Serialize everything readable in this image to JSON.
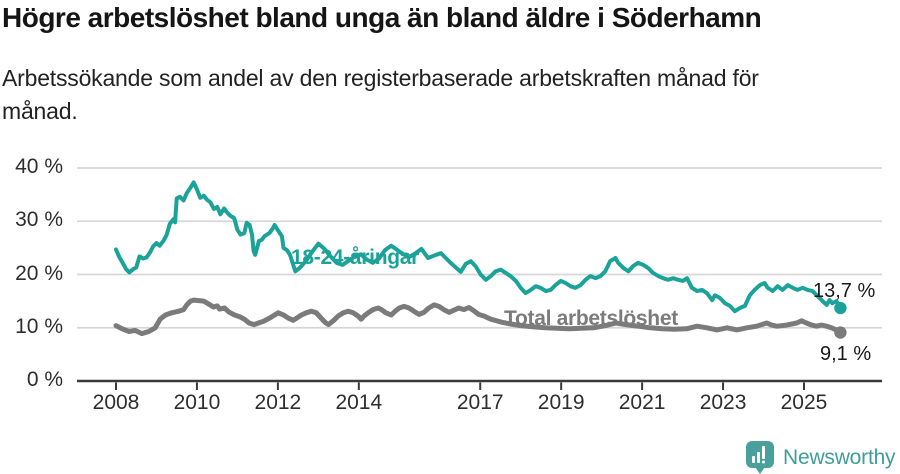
{
  "header": {
    "title": "Högre arbetslöshet bland unga än bland äldre i Söderhamn",
    "subtitle_line1": "Arbetssökande som andel av den registerbaserade arbetskraften månad för",
    "subtitle_line2": "månad."
  },
  "chart_data": {
    "type": "line",
    "title": "Högre arbetslöshet bland unga än bland äldre i Söderhamn",
    "subtitle": "Arbetssökande som andel av den registerbaserade arbetskraften månad för månad.",
    "x_ticks": [
      2008,
      2010,
      2012,
      2014,
      2017,
      2019,
      2021,
      2023,
      2025
    ],
    "y_ticks": [
      0,
      10,
      20,
      30,
      40
    ],
    "y_tick_suffix": " %",
    "xlim": [
      2008,
      2026
    ],
    "ylim": [
      0,
      40
    ],
    "grid": "horizontal",
    "legend": "inline-labels",
    "grid_color": "#d7d7d7",
    "axis_color": "#3a3a3a",
    "series": [
      {
        "name": "18-24-åringar",
        "color": "#1ba39a",
        "end_label": "13,7 %",
        "end_value": 13.7,
        "points": [
          [
            2008.0,
            24.7
          ],
          [
            2008.08,
            23.3
          ],
          [
            2008.17,
            22.1
          ],
          [
            2008.25,
            21.0
          ],
          [
            2008.33,
            20.4
          ],
          [
            2008.42,
            21.0
          ],
          [
            2008.5,
            21.3
          ],
          [
            2008.58,
            23.4
          ],
          [
            2008.67,
            23.0
          ],
          [
            2008.75,
            23.2
          ],
          [
            2008.83,
            24.0
          ],
          [
            2008.92,
            25.3
          ],
          [
            2009.0,
            25.9
          ],
          [
            2009.08,
            25.4
          ],
          [
            2009.17,
            26.3
          ],
          [
            2009.25,
            27.4
          ],
          [
            2009.33,
            29.5
          ],
          [
            2009.42,
            30.4
          ],
          [
            2009.46,
            29.8
          ],
          [
            2009.5,
            34.3
          ],
          [
            2009.58,
            34.6
          ],
          [
            2009.67,
            33.9
          ],
          [
            2009.75,
            35.3
          ],
          [
            2009.83,
            36.2
          ],
          [
            2009.92,
            37.3
          ],
          [
            2010.0,
            36.0
          ],
          [
            2010.08,
            34.4
          ],
          [
            2010.17,
            34.8
          ],
          [
            2010.25,
            34.0
          ],
          [
            2010.33,
            33.6
          ],
          [
            2010.42,
            32.3
          ],
          [
            2010.5,
            32.7
          ],
          [
            2010.58,
            31.3
          ],
          [
            2010.67,
            32.4
          ],
          [
            2010.75,
            31.6
          ],
          [
            2010.83,
            31.0
          ],
          [
            2010.92,
            30.6
          ],
          [
            2011.0,
            28.4
          ],
          [
            2011.08,
            27.5
          ],
          [
            2011.17,
            27.8
          ],
          [
            2011.23,
            29.7
          ],
          [
            2011.3,
            29.3
          ],
          [
            2011.36,
            27.5
          ],
          [
            2011.4,
            24.4
          ],
          [
            2011.44,
            23.7
          ],
          [
            2011.53,
            26.3
          ],
          [
            2011.6,
            26.5
          ],
          [
            2011.67,
            27.2
          ],
          [
            2011.79,
            27.8
          ],
          [
            2011.88,
            28.7
          ],
          [
            2011.92,
            29.3
          ],
          [
            2012.0,
            28.3
          ],
          [
            2012.1,
            27.2
          ],
          [
            2012.14,
            25.0
          ],
          [
            2012.22,
            24.6
          ],
          [
            2012.3,
            23.7
          ],
          [
            2012.43,
            20.6
          ],
          [
            2012.55,
            21.3
          ],
          [
            2012.7,
            22.6
          ],
          [
            2012.85,
            24.3
          ],
          [
            2013.0,
            25.8
          ],
          [
            2013.15,
            24.8
          ],
          [
            2013.3,
            23.4
          ],
          [
            2013.45,
            22.2
          ],
          [
            2013.6,
            21.8
          ],
          [
            2013.75,
            22.6
          ],
          [
            2013.9,
            23.4
          ],
          [
            2014.05,
            23.8
          ],
          [
            2014.2,
            22.8
          ],
          [
            2014.35,
            22.2
          ],
          [
            2014.5,
            23.0
          ],
          [
            2014.65,
            24.6
          ],
          [
            2014.8,
            25.4
          ],
          [
            2014.95,
            24.6
          ],
          [
            2015.1,
            23.8
          ],
          [
            2015.25,
            23.3
          ],
          [
            2015.4,
            24.0
          ],
          [
            2015.55,
            24.8
          ],
          [
            2015.71,
            23.1
          ],
          [
            2015.91,
            23.7
          ],
          [
            2016.03,
            24.0
          ],
          [
            2016.15,
            23.1
          ],
          [
            2016.28,
            22.1
          ],
          [
            2016.4,
            21.3
          ],
          [
            2016.52,
            20.5
          ],
          [
            2016.64,
            22.0
          ],
          [
            2016.77,
            22.5
          ],
          [
            2016.89,
            21.5
          ],
          [
            2017.01,
            20.0
          ],
          [
            2017.14,
            19.0
          ],
          [
            2017.26,
            19.7
          ],
          [
            2017.38,
            20.6
          ],
          [
            2017.51,
            20.9
          ],
          [
            2017.63,
            20.3
          ],
          [
            2017.75,
            19.7
          ],
          [
            2017.88,
            18.8
          ],
          [
            2018.0,
            17.5
          ],
          [
            2018.12,
            16.5
          ],
          [
            2018.25,
            17.1
          ],
          [
            2018.37,
            17.8
          ],
          [
            2018.49,
            17.5
          ],
          [
            2018.62,
            16.9
          ],
          [
            2018.74,
            17.1
          ],
          [
            2018.86,
            18.0
          ],
          [
            2018.99,
            18.8
          ],
          [
            2019.11,
            18.4
          ],
          [
            2019.23,
            17.8
          ],
          [
            2019.35,
            17.5
          ],
          [
            2019.48,
            18.0
          ],
          [
            2019.6,
            19.0
          ],
          [
            2019.72,
            19.7
          ],
          [
            2019.85,
            19.3
          ],
          [
            2019.97,
            19.7
          ],
          [
            2020.09,
            20.6
          ],
          [
            2020.21,
            22.5
          ],
          [
            2020.34,
            23.1
          ],
          [
            2020.41,
            22.2
          ],
          [
            2020.54,
            21.2
          ],
          [
            2020.66,
            20.6
          ],
          [
            2020.78,
            21.6
          ],
          [
            2020.9,
            22.2
          ],
          [
            2021.03,
            21.8
          ],
          [
            2021.15,
            21.2
          ],
          [
            2021.27,
            20.3
          ],
          [
            2021.4,
            19.7
          ],
          [
            2021.52,
            19.3
          ],
          [
            2021.64,
            19.0
          ],
          [
            2021.77,
            19.3
          ],
          [
            2021.89,
            19.0
          ],
          [
            2022.01,
            18.8
          ],
          [
            2022.11,
            19.3
          ],
          [
            2022.23,
            17.5
          ],
          [
            2022.36,
            16.9
          ],
          [
            2022.48,
            17.1
          ],
          [
            2022.6,
            16.5
          ],
          [
            2022.73,
            15.2
          ],
          [
            2022.8,
            16.1
          ],
          [
            2022.92,
            15.6
          ],
          [
            2023.05,
            14.6
          ],
          [
            2023.17,
            14.1
          ],
          [
            2023.29,
            13.1
          ],
          [
            2023.42,
            13.7
          ],
          [
            2023.54,
            14.1
          ],
          [
            2023.66,
            16.1
          ],
          [
            2023.78,
            17.1
          ],
          [
            2023.91,
            18.0
          ],
          [
            2024.03,
            18.4
          ],
          [
            2024.1,
            17.5
          ],
          [
            2024.23,
            16.9
          ],
          [
            2024.35,
            17.8
          ],
          [
            2024.47,
            17.1
          ],
          [
            2024.6,
            18.0
          ],
          [
            2024.72,
            17.5
          ],
          [
            2024.84,
            17.1
          ],
          [
            2024.97,
            17.5
          ],
          [
            2025.09,
            17.1
          ],
          [
            2025.21,
            16.9
          ],
          [
            2025.33,
            16.0
          ],
          [
            2025.46,
            15.0
          ],
          [
            2025.56,
            14.3
          ],
          [
            2025.63,
            15.2
          ],
          [
            2025.7,
            14.6
          ],
          [
            2025.8,
            15.0
          ],
          [
            2025.9,
            13.7
          ]
        ]
      },
      {
        "name": "Total arbetslöshet",
        "color": "#7b7b7b",
        "end_label": "9,1 %",
        "end_value": 9.1,
        "points": [
          [
            2008.0,
            10.4
          ],
          [
            2008.15,
            9.8
          ],
          [
            2008.32,
            9.3
          ],
          [
            2008.47,
            9.5
          ],
          [
            2008.64,
            8.9
          ],
          [
            2008.81,
            9.3
          ],
          [
            2008.97,
            10.0
          ],
          [
            2009.09,
            11.6
          ],
          [
            2009.22,
            12.4
          ],
          [
            2009.38,
            12.8
          ],
          [
            2009.55,
            13.1
          ],
          [
            2009.67,
            13.4
          ],
          [
            2009.75,
            14.3
          ],
          [
            2009.84,
            15.0
          ],
          [
            2009.92,
            15.2
          ],
          [
            2010.05,
            15.1
          ],
          [
            2010.17,
            15.0
          ],
          [
            2010.3,
            14.4
          ],
          [
            2010.41,
            13.9
          ],
          [
            2010.5,
            14.1
          ],
          [
            2010.56,
            13.5
          ],
          [
            2010.68,
            13.7
          ],
          [
            2010.8,
            12.9
          ],
          [
            2010.93,
            12.4
          ],
          [
            2011.05,
            12.1
          ],
          [
            2011.17,
            11.6
          ],
          [
            2011.29,
            10.9
          ],
          [
            2011.41,
            10.6
          ],
          [
            2011.52,
            10.9
          ],
          [
            2011.64,
            11.2
          ],
          [
            2011.79,
            11.8
          ],
          [
            2011.92,
            12.4
          ],
          [
            2012.01,
            12.8
          ],
          [
            2012.14,
            12.4
          ],
          [
            2012.26,
            11.8
          ],
          [
            2012.38,
            11.4
          ],
          [
            2012.46,
            11.8
          ],
          [
            2012.58,
            12.4
          ],
          [
            2012.7,
            12.8
          ],
          [
            2012.83,
            13.1
          ],
          [
            2012.95,
            12.8
          ],
          [
            2013.07,
            11.8
          ],
          [
            2013.17,
            11.0
          ],
          [
            2013.25,
            10.6
          ],
          [
            2013.37,
            11.3
          ],
          [
            2013.49,
            12.2
          ],
          [
            2013.62,
            12.8
          ],
          [
            2013.74,
            13.1
          ],
          [
            2013.86,
            12.8
          ],
          [
            2013.98,
            12.2
          ],
          [
            2014.06,
            11.6
          ],
          [
            2014.13,
            12.2
          ],
          [
            2014.23,
            12.8
          ],
          [
            2014.35,
            13.4
          ],
          [
            2014.48,
            13.7
          ],
          [
            2014.56,
            13.4
          ],
          [
            2014.67,
            12.8
          ],
          [
            2014.8,
            12.4
          ],
          [
            2014.9,
            13.1
          ],
          [
            2015.0,
            13.7
          ],
          [
            2015.12,
            14.0
          ],
          [
            2015.24,
            13.7
          ],
          [
            2015.36,
            13.1
          ],
          [
            2015.49,
            12.5
          ],
          [
            2015.61,
            12.9
          ],
          [
            2015.73,
            13.7
          ],
          [
            2015.86,
            14.3
          ],
          [
            2015.98,
            14.0
          ],
          [
            2016.1,
            13.4
          ],
          [
            2016.23,
            12.9
          ],
          [
            2016.35,
            13.3
          ],
          [
            2016.47,
            13.7
          ],
          [
            2016.6,
            13.4
          ],
          [
            2016.72,
            13.8
          ],
          [
            2016.84,
            13.2
          ],
          [
            2016.96,
            12.5
          ],
          [
            2017.09,
            12.2
          ],
          [
            2017.26,
            11.6
          ],
          [
            2017.5,
            11.1
          ],
          [
            2017.75,
            10.7
          ],
          [
            2018.0,
            10.4
          ],
          [
            2018.3,
            10.2
          ],
          [
            2018.6,
            10.0
          ],
          [
            2018.9,
            9.9
          ],
          [
            2019.2,
            9.8
          ],
          [
            2019.5,
            9.9
          ],
          [
            2019.8,
            10.0
          ],
          [
            2020.1,
            10.4
          ],
          [
            2020.35,
            10.9
          ],
          [
            2020.6,
            10.6
          ],
          [
            2020.9,
            10.3
          ],
          [
            2021.2,
            10.0
          ],
          [
            2021.5,
            9.8
          ],
          [
            2021.8,
            9.7
          ],
          [
            2022.1,
            9.8
          ],
          [
            2022.36,
            10.3
          ],
          [
            2022.6,
            10.0
          ],
          [
            2022.85,
            9.6
          ],
          [
            2023.1,
            10.0
          ],
          [
            2023.34,
            9.6
          ],
          [
            2023.59,
            10.0
          ],
          [
            2023.83,
            10.3
          ],
          [
            2024.08,
            10.9
          ],
          [
            2024.2,
            10.5
          ],
          [
            2024.33,
            10.3
          ],
          [
            2024.57,
            10.5
          ],
          [
            2024.82,
            10.9
          ],
          [
            2024.94,
            11.3
          ],
          [
            2025.06,
            10.9
          ],
          [
            2025.19,
            10.5
          ],
          [
            2025.31,
            10.3
          ],
          [
            2025.43,
            10.5
          ],
          [
            2025.56,
            10.3
          ],
          [
            2025.68,
            10.0
          ],
          [
            2025.8,
            9.6
          ],
          [
            2025.9,
            9.1
          ]
        ]
      }
    ]
  },
  "footer": {
    "brand": "Newsworthy",
    "brand_color": "#3f9f98",
    "brand_icon": "newsworthy-bars-icon"
  }
}
